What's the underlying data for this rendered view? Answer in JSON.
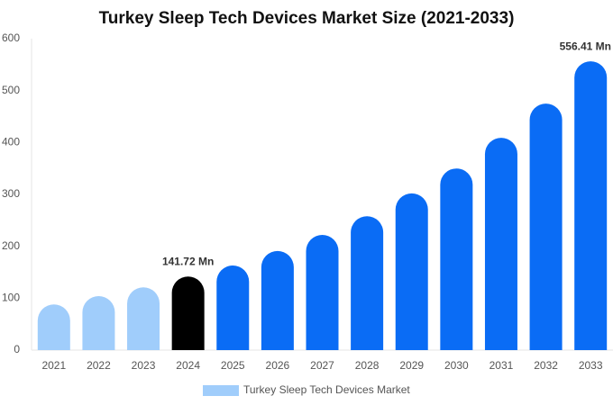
{
  "chart_data": {
    "type": "bar",
    "title": "Turkey Sleep Tech Devices Market Size (2021-2033)",
    "categories": [
      "2021",
      "2022",
      "2023",
      "2024",
      "2025",
      "2026",
      "2027",
      "2028",
      "2029",
      "2030",
      "2031",
      "2032",
      "2033"
    ],
    "series": [
      {
        "name": "Turkey Sleep Tech Devices Market",
        "color": "#a0cdfb",
        "colors": [
          "#a0cdfb",
          "#a0cdfb",
          "#a0cdfb",
          "#000000",
          "#0a6cf5",
          "#0a6cf5",
          "#0a6cf5",
          "#0a6cf5",
          "#0a6cf5",
          "#0a6cf5",
          "#0a6cf5",
          "#0a6cf5",
          "#0a6cf5"
        ],
        "values": [
          88,
          104,
          121,
          141.72,
          163,
          191,
          222,
          258,
          302,
          350,
          409,
          475,
          556.41
        ],
        "value_labels": [
          null,
          null,
          null,
          "141.72 Mn",
          null,
          null,
          null,
          null,
          null,
          null,
          null,
          null,
          "556.41 Mn"
        ]
      }
    ],
    "ylim": [
      0,
      600
    ],
    "yticks": [
      0,
      100,
      200,
      300,
      400,
      500,
      600
    ],
    "grid": false,
    "legend": "bottom"
  }
}
